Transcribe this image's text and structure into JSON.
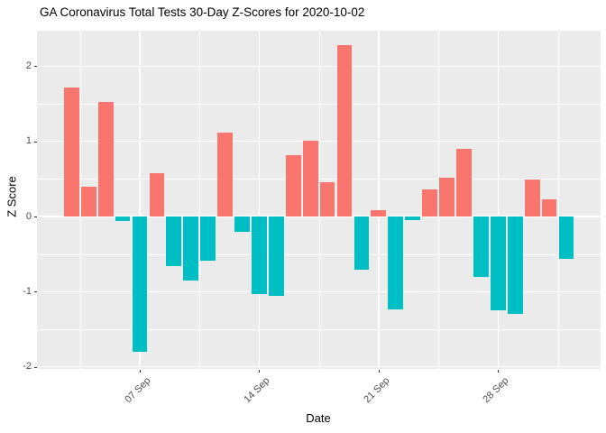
{
  "title": "GA Coronavirus Total Tests 30-Day Z-Scores for 2020-10-02",
  "chart_data": {
    "type": "bar",
    "title": "GA Coronavirus Total Tests 30-Day Z-Scores for 2020-10-02",
    "xlabel": "Date",
    "ylabel": "Z Score",
    "dates": [
      "2020-09-03",
      "2020-09-04",
      "2020-09-05",
      "2020-09-06",
      "2020-09-07",
      "2020-09-08",
      "2020-09-09",
      "2020-09-10",
      "2020-09-11",
      "2020-09-12",
      "2020-09-13",
      "2020-09-14",
      "2020-09-15",
      "2020-09-16",
      "2020-09-17",
      "2020-09-18",
      "2020-09-19",
      "2020-09-20",
      "2020-09-21",
      "2020-09-22",
      "2020-09-23",
      "2020-09-24",
      "2020-09-25",
      "2020-09-26",
      "2020-09-27",
      "2020-09-28",
      "2020-09-29",
      "2020-09-30",
      "2020-10-01",
      "2020-10-02"
    ],
    "values": [
      1.72,
      0.39,
      1.52,
      -0.06,
      -1.8,
      0.58,
      -0.66,
      -0.85,
      -0.59,
      1.12,
      -0.2,
      -1.03,
      -1.06,
      0.81,
      1.01,
      0.46,
      2.28,
      -0.71,
      0.08,
      -1.23,
      -0.05,
      0.36,
      0.52,
      0.9,
      -0.8,
      -1.25,
      -1.29,
      0.49,
      0.23,
      -0.56
    ],
    "positive_color": "#F8766D",
    "negative_color": "#00BFC4",
    "panel_background": "#EBEBEB",
    "gridline_color": "#FFFFFF",
    "tick_label_color": "#4D4D4D",
    "ylim": [
      -2.03,
      2.48
    ],
    "y_ticks": [
      {
        "label": "2",
        "value": 2
      },
      {
        "label": "1",
        "value": 1
      },
      {
        "label": "0",
        "value": 0
      },
      {
        "label": "-1",
        "value": -1
      },
      {
        "label": "-2",
        "value": -2
      }
    ],
    "y_minor_values": [
      1.5,
      0.5,
      -0.5,
      -1.5
    ],
    "x_ticks": [
      {
        "label": "07 Sep",
        "day_index": 4
      },
      {
        "label": "14 Sep",
        "day_index": 11
      },
      {
        "label": "21 Sep",
        "day_index": 18
      },
      {
        "label": "28 Sep",
        "day_index": 25
      }
    ],
    "x_minor_day_indices": [
      0.5,
      7.5,
      14.5,
      21.5,
      28.5
    ],
    "grid": true,
    "legend": "none"
  }
}
